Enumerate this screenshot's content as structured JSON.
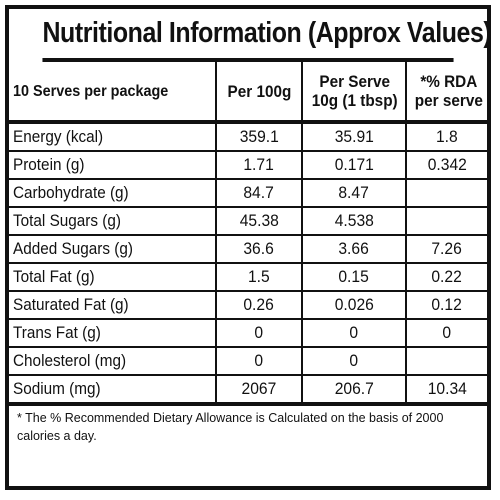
{
  "title": "Nutritional Information (Approx Values)",
  "header": {
    "col1": "10 Serves per package",
    "col2": "Per 100g",
    "col3_line1": "Per Serve",
    "col3_line2": "10g (1 tbsp)",
    "col4_line1": "*% RDA",
    "col4_line2": "per serve"
  },
  "rows": [
    {
      "name": "Energy (kcal)",
      "per100": "359.1",
      "perServe": "35.91",
      "rda": "1.8"
    },
    {
      "name": "Protein (g)",
      "per100": "1.71",
      "perServe": "0.171",
      "rda": "0.342"
    },
    {
      "name": "Carbohydrate (g)",
      "per100": "84.7",
      "perServe": "8.47",
      "rda": ""
    },
    {
      "name": "Total Sugars (g)",
      "per100": "45.38",
      "perServe": "4.538",
      "rda": ""
    },
    {
      "name": "Added Sugars (g)",
      "per100": "36.6",
      "perServe": "3.66",
      "rda": "7.26"
    },
    {
      "name": "Total Fat (g)",
      "per100": "1.5",
      "perServe": "0.15",
      "rda": "0.22"
    },
    {
      "name": "Saturated Fat (g)",
      "per100": "0.26",
      "perServe": "0.026",
      "rda": "0.12"
    },
    {
      "name": "Trans Fat (g)",
      "per100": "0",
      "perServe": "0",
      "rda": "0"
    },
    {
      "name": "Cholesterol (mg)",
      "per100": "0",
      "perServe": "0",
      "rda": ""
    },
    {
      "name": "Sodium (mg)",
      "per100": "2067",
      "perServe": "206.7",
      "rda": "10.34"
    }
  ],
  "footnote": "* The % Recommended Dietary Allowance is Calculated on the basis of 2000 calories a day."
}
